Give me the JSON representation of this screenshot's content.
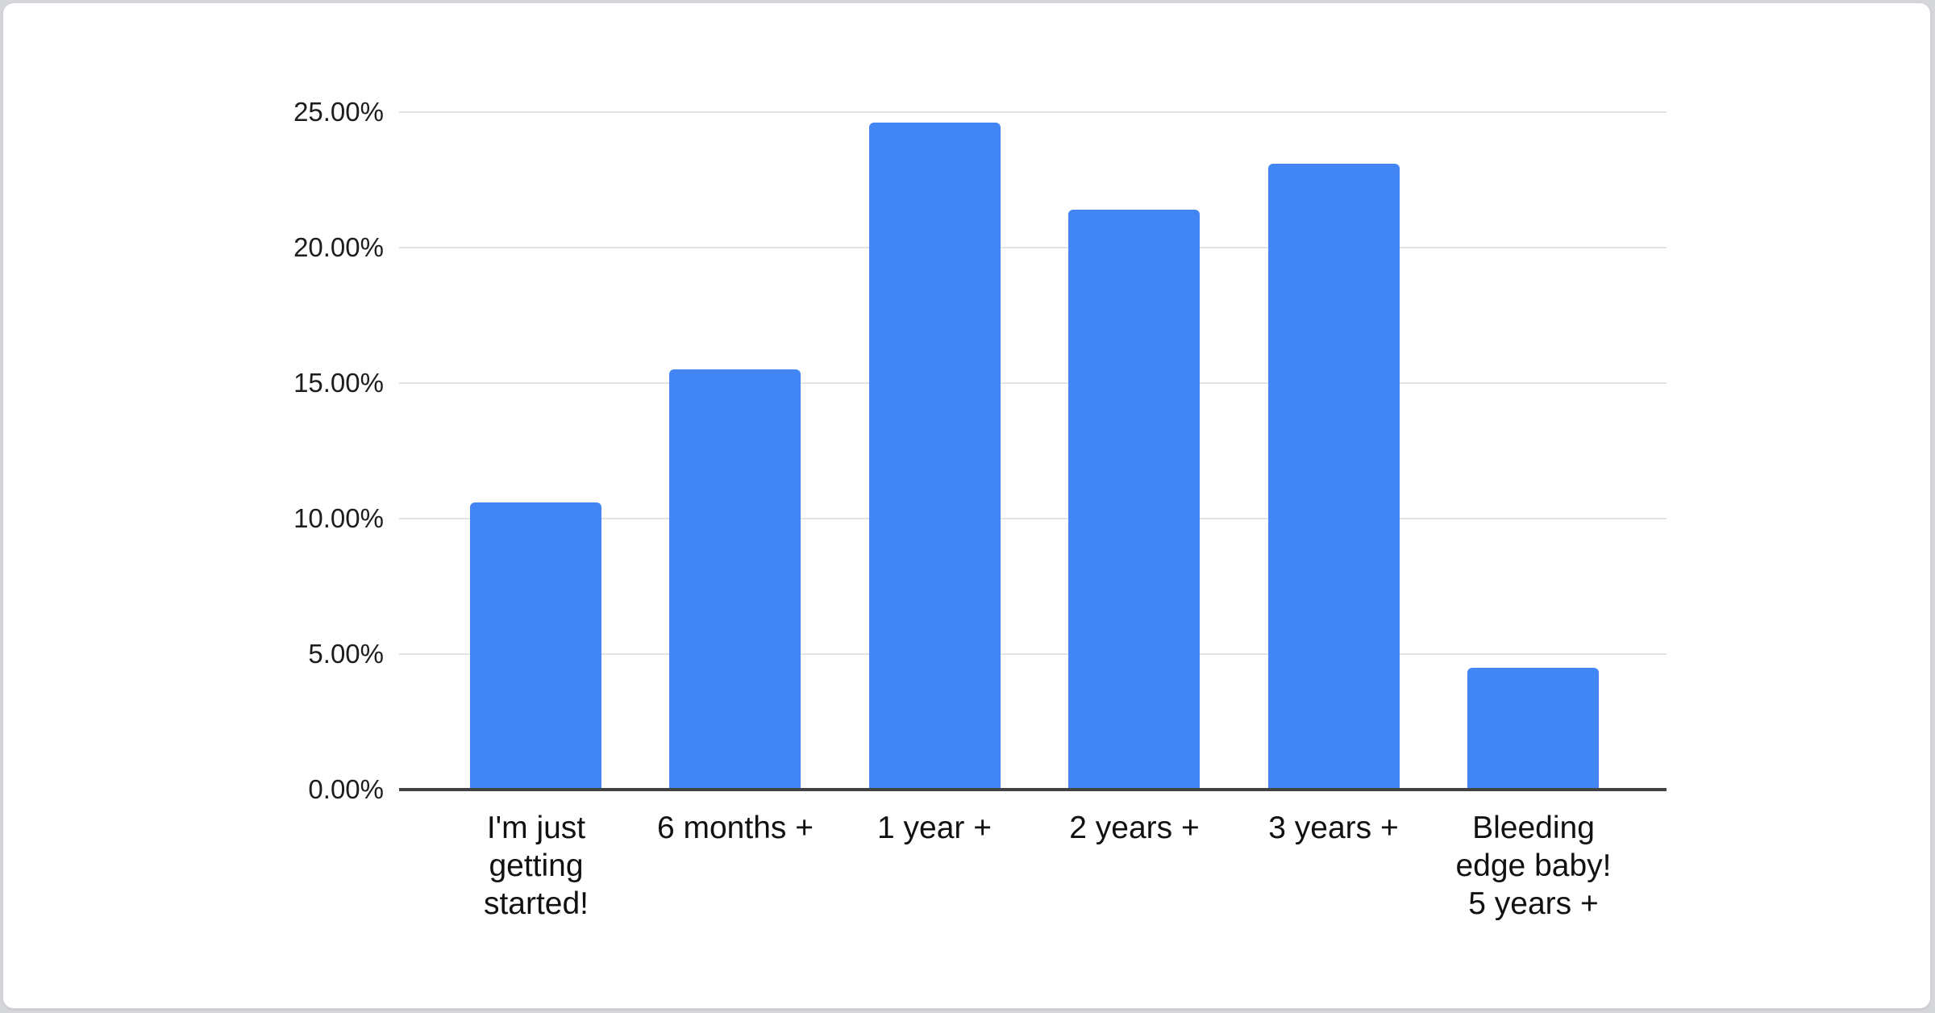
{
  "page": {
    "background_color": "#d5d7da",
    "card_background": "#ffffff",
    "card_border_color": "#d2d4d8"
  },
  "chart_data": {
    "type": "bar",
    "title": "",
    "xlabel": "",
    "ylabel": "",
    "categories": [
      "I'm just getting started!",
      "6 months +",
      "1 year +",
      "2 years +",
      "3 years +",
      "Bleeding edge baby! 5 years +"
    ],
    "category_display": [
      "I'm just\ngetting\nstarted!",
      "6 months +",
      "1 year +",
      "2 years +",
      "3 years +",
      "Bleeding\nedge baby!\n5 years +"
    ],
    "values": [
      10.6,
      15.5,
      24.6,
      21.4,
      23.1,
      4.5
    ],
    "value_unit": "%",
    "ylim": [
      0,
      25
    ],
    "y_ticks": [
      0,
      5,
      10,
      15,
      20,
      25
    ],
    "y_tick_labels": [
      "0.00%",
      "5.00%",
      "10.00%",
      "15.00%",
      "20.00%",
      "25.00%"
    ],
    "grid": true,
    "legend": "none",
    "bar_color": "#4285f4",
    "gridline_color": "#e3e3e3",
    "axis_line_color": "#424242",
    "tick_label_color": "#1d1d1d",
    "category_label_color": "#111111"
  }
}
